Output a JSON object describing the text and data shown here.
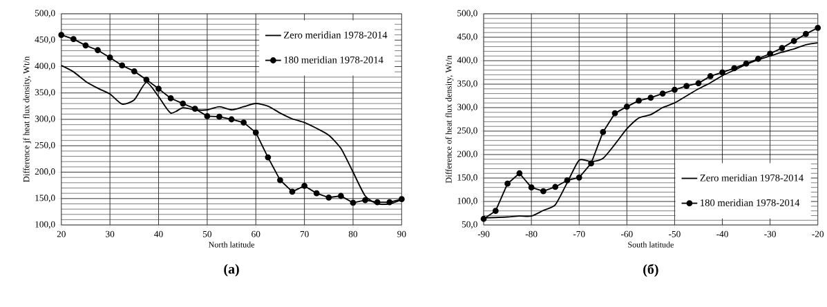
{
  "chart_data": [
    {
      "type": "line",
      "title": "(a)",
      "xlabel": "North latitude",
      "ylabel": "Difference jf heat flux density,  Wt/n",
      "xlim": [
        20,
        90
      ],
      "xticks": [
        20,
        30,
        40,
        50,
        60,
        70,
        80,
        90
      ],
      "ylim": [
        100,
        500
      ],
      "yticks": [
        {
          "value": 100,
          "label": "100,0"
        },
        {
          "value": 150,
          "label": "150,0"
        },
        {
          "value": 200,
          "label": "200,0"
        },
        {
          "value": 250,
          "label": "250,0"
        },
        {
          "value": 300,
          "label": "300,0"
        },
        {
          "value": 350,
          "label": "350,0"
        },
        {
          "value": 400,
          "label": "400,0"
        },
        {
          "value": 450,
          "label": "450,0"
        },
        {
          "value": 500,
          "label": "500,0"
        }
      ],
      "grid": true,
      "legend": "top right",
      "x": [
        20,
        22.5,
        25,
        27.5,
        30,
        32.5,
        35,
        37.5,
        40,
        42.5,
        45,
        47.5,
        50,
        52.5,
        55,
        57.5,
        60,
        62.5,
        65,
        67.5,
        70,
        72.5,
        75,
        77.5,
        80,
        82.5,
        85,
        87.5,
        90
      ],
      "series": [
        {
          "name": "Zero meridian 1978-2014",
          "color": "#000000",
          "marker": "none",
          "values": [
            402,
            390,
            372,
            359,
            348,
            329,
            337,
            370,
            343,
            312,
            322,
            318,
            318,
            324,
            318,
            324,
            330,
            325,
            312,
            301,
            294,
            283,
            270,
            245,
            200,
            155,
            140,
            140,
            148
          ]
        },
        {
          "name": "180 meridian 1978-2014",
          "color": "#000000",
          "marker": "circle",
          "values": [
            460,
            452,
            440,
            431,
            417,
            402,
            391,
            375,
            358,
            340,
            330,
            320,
            306,
            305,
            300,
            294,
            275,
            228,
            185,
            163,
            174,
            160,
            152,
            155,
            142,
            147,
            143,
            143,
            149
          ]
        }
      ]
    },
    {
      "type": "line",
      "title": "(б)",
      "xlabel": "South latitude",
      "ylabel": "Difference of heat flux density,  Wt/n",
      "xlim": [
        -90,
        -20
      ],
      "xticks": [
        -90,
        -80,
        -70,
        -60,
        -50,
        -40,
        -30,
        -20
      ],
      "ylim": [
        50,
        500
      ],
      "yticks": [
        {
          "value": 50,
          "label": "50,0"
        },
        {
          "value": 100,
          "label": "100,0"
        },
        {
          "value": 150,
          "label": "150,0"
        },
        {
          "value": 200,
          "label": "200,0"
        },
        {
          "value": 250,
          "label": "250,0"
        },
        {
          "value": 300,
          "label": "300,0"
        },
        {
          "value": 350,
          "label": "350,0"
        },
        {
          "value": 400,
          "label": "400,0"
        },
        {
          "value": 450,
          "label": "450,0"
        },
        {
          "value": 500,
          "label": "500,0"
        }
      ],
      "grid": true,
      "legend": "bottom right",
      "x": [
        -90,
        -87.5,
        -85,
        -82.5,
        -80,
        -77.5,
        -75,
        -72.5,
        -70,
        -67.5,
        -65,
        -62.5,
        -60,
        -57.5,
        -55,
        -52.5,
        -50,
        -47.5,
        -45,
        -42.5,
        -40,
        -37.5,
        -35,
        -32.5,
        -30,
        -27.5,
        -25,
        -22.5,
        -20
      ],
      "series": [
        {
          "name": "Zero meridian 1978-2014",
          "color": "#000000",
          "marker": "none",
          "values": [
            65,
            66,
            67,
            69,
            69,
            81,
            93,
            140,
            188,
            185,
            192,
            222,
            255,
            278,
            285,
            300,
            310,
            325,
            340,
            353,
            368,
            380,
            392,
            402,
            410,
            418,
            425,
            434,
            438
          ]
        },
        {
          "name": "180 meridian 1978-2014",
          "color": "#000000",
          "marker": "circle",
          "values": [
            63,
            80,
            138,
            160,
            130,
            122,
            131,
            145,
            151,
            181,
            248,
            288,
            302,
            315,
            321,
            330,
            338,
            346,
            352,
            367,
            375,
            384,
            394,
            404,
            415,
            427,
            442,
            457,
            470
          ]
        }
      ]
    }
  ]
}
